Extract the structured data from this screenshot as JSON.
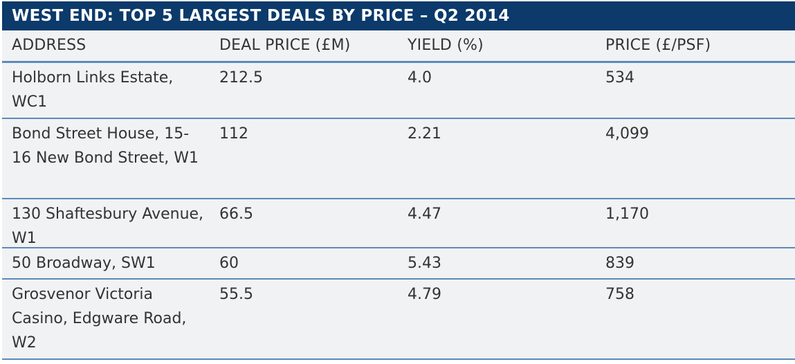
{
  "title": "WEST END: TOP 5 LARGEST DEALS BY PRICE – Q2 2014",
  "headers": {
    "address": "ADDRESS",
    "deal_price": "DEAL PRICE (£M)",
    "yield": "YIELD (%)",
    "price_psf": "PRICE (£/PSF)"
  },
  "rows": [
    {
      "address": "Holborn Links Estate, WC1",
      "deal_price": "212.5",
      "yield": "4.0",
      "price_psf": "534"
    },
    {
      "address": "Bond Street House, 15-16 New Bond Street, W1",
      "deal_price": "112",
      "yield": "2.21",
      "price_psf": "4,099"
    },
    {
      "address": "130 Shaftesbury Avenue, W1",
      "deal_price": "66.5",
      "yield": "4.47",
      "price_psf": "1,170"
    },
    {
      "address": "50 Broadway, SW1",
      "deal_price": "60",
      "yield": "5.43",
      "price_psf": "839"
    },
    {
      "address": "Grosvenor Victoria Casino, Edgware Road, W2",
      "deal_price": "55.5",
      "yield": "4.79",
      "price_psf": "758"
    }
  ],
  "colors": {
    "title_background": "#0b3a6b",
    "row_background": "#f1f2f4",
    "rule": "#5b89bd"
  }
}
